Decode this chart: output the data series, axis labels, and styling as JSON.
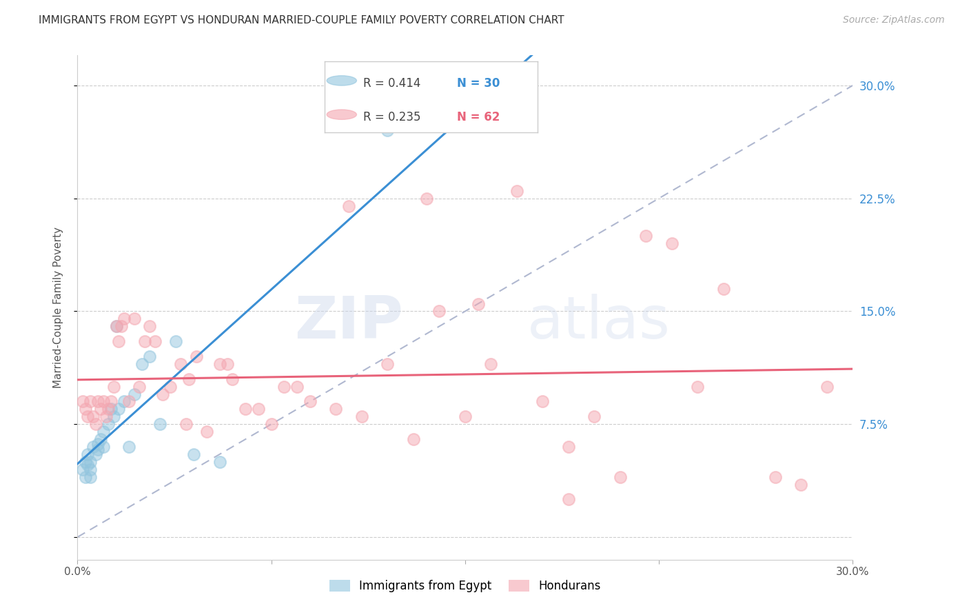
{
  "title": "IMMIGRANTS FROM EGYPT VS HONDURAN MARRIED-COUPLE FAMILY POVERTY CORRELATION CHART",
  "source": "Source: ZipAtlas.com",
  "ylabel": "Married-Couple Family Poverty",
  "xlim": [
    0.0,
    0.3
  ],
  "ylim": [
    -0.015,
    0.32
  ],
  "yticks": [
    0.0,
    0.075,
    0.15,
    0.225,
    0.3
  ],
  "ytick_labels": [
    "",
    "7.5%",
    "15.0%",
    "22.5%",
    "30.0%"
  ],
  "xticks": [
    0.0,
    0.075,
    0.15,
    0.225,
    0.3
  ],
  "xtick_labels": [
    "0.0%",
    "",
    "",
    "",
    "30.0%"
  ],
  "grid_color": "#cccccc",
  "background_color": "#ffffff",
  "watermark_zip": "ZIP",
  "watermark_atlas": "atlas",
  "blue_color": "#92c5de",
  "pink_color": "#f4a6b0",
  "blue_line_color": "#3b8fd4",
  "pink_line_color": "#e8637a",
  "diag_line_color": "#b0b8d0",
  "right_axis_color": "#3b8fd4",
  "egypt_x": [
    0.002,
    0.003,
    0.003,
    0.004,
    0.004,
    0.005,
    0.005,
    0.005,
    0.006,
    0.007,
    0.008,
    0.008,
    0.009,
    0.01,
    0.01,
    0.012,
    0.013,
    0.014,
    0.015,
    0.016,
    0.018,
    0.02,
    0.022,
    0.025,
    0.028,
    0.032,
    0.038,
    0.045,
    0.055,
    0.12
  ],
  "egypt_y": [
    0.045,
    0.04,
    0.05,
    0.048,
    0.055,
    0.04,
    0.045,
    0.05,
    0.06,
    0.055,
    0.058,
    0.062,
    0.065,
    0.06,
    0.07,
    0.075,
    0.085,
    0.08,
    0.14,
    0.085,
    0.09,
    0.06,
    0.095,
    0.115,
    0.12,
    0.075,
    0.13,
    0.055,
    0.05,
    0.27
  ],
  "honduran_x": [
    0.002,
    0.003,
    0.004,
    0.005,
    0.006,
    0.007,
    0.008,
    0.009,
    0.01,
    0.011,
    0.012,
    0.013,
    0.014,
    0.015,
    0.016,
    0.017,
    0.018,
    0.02,
    0.022,
    0.024,
    0.026,
    0.028,
    0.03,
    0.033,
    0.036,
    0.04,
    0.043,
    0.046,
    0.05,
    0.055,
    0.06,
    0.065,
    0.07,
    0.075,
    0.08,
    0.09,
    0.1,
    0.11,
    0.12,
    0.13,
    0.14,
    0.15,
    0.16,
    0.18,
    0.19,
    0.2,
    0.22,
    0.24,
    0.25,
    0.27,
    0.28,
    0.29,
    0.19,
    0.21,
    0.23,
    0.17,
    0.155,
    0.135,
    0.105,
    0.085,
    0.058,
    0.042
  ],
  "honduran_y": [
    0.09,
    0.085,
    0.08,
    0.09,
    0.08,
    0.075,
    0.09,
    0.085,
    0.09,
    0.08,
    0.085,
    0.09,
    0.1,
    0.14,
    0.13,
    0.14,
    0.145,
    0.09,
    0.145,
    0.1,
    0.13,
    0.14,
    0.13,
    0.095,
    0.1,
    0.115,
    0.105,
    0.12,
    0.07,
    0.115,
    0.105,
    0.085,
    0.085,
    0.075,
    0.1,
    0.09,
    0.085,
    0.08,
    0.115,
    0.065,
    0.15,
    0.08,
    0.115,
    0.09,
    0.06,
    0.08,
    0.2,
    0.1,
    0.165,
    0.04,
    0.035,
    0.1,
    0.025,
    0.04,
    0.195,
    0.23,
    0.155,
    0.225,
    0.22,
    0.1,
    0.115,
    0.075
  ],
  "blue_regression": [
    0.02,
    0.13
  ],
  "pink_regression_start_y": 0.092,
  "pink_regression_end_y": 0.138
}
